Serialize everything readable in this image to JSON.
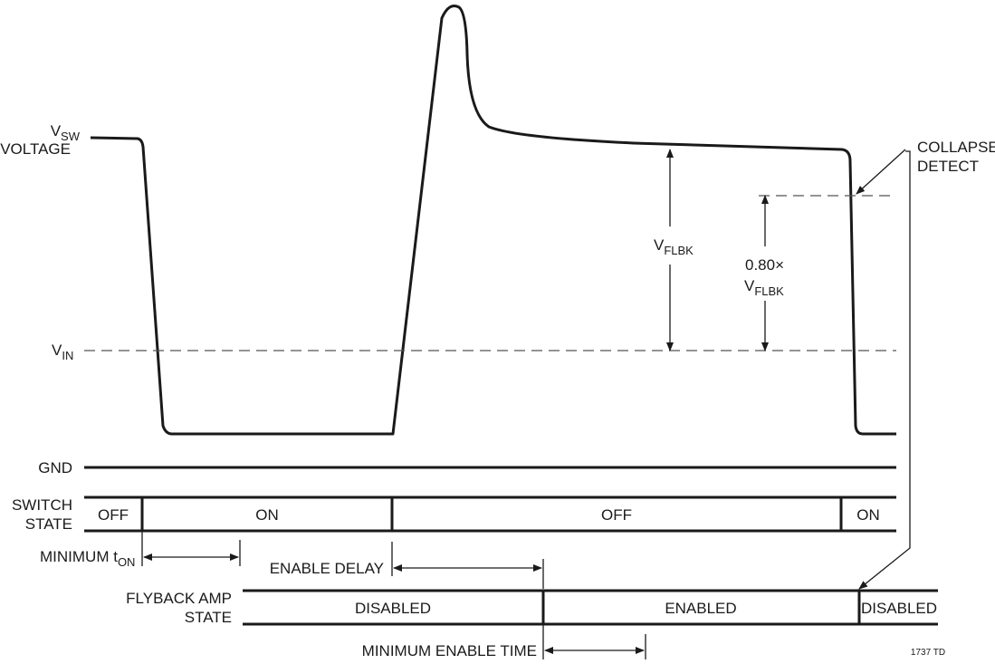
{
  "signal": {
    "vsw_main": "V",
    "vsw_sub": "SW",
    "vsw_voltage": "VOLTAGE",
    "vin_main": "V",
    "vin_sub": "IN",
    "gnd": "GND"
  },
  "annotations": {
    "vflbk_main": "V",
    "vflbk_sub": "FLBK",
    "factor": "0.80×",
    "factor_vflbk_main": "V",
    "factor_vflbk_sub": "FLBK",
    "collapse_line1": "COLLAPSE",
    "collapse_line2": "DETECT"
  },
  "switch_state": {
    "label_line1": "SWITCH",
    "label_line2": "STATE",
    "segments": [
      "OFF",
      "ON",
      "OFF",
      "ON"
    ]
  },
  "timing": {
    "min_ton_main": "MINIMUM t",
    "min_ton_sub": "ON",
    "enable_delay": "ENABLE DELAY",
    "min_enable_time": "MINIMUM ENABLE TIME"
  },
  "flyback_amp_state": {
    "label_line1": "FLYBACK AMP",
    "label_line2": "STATE",
    "segments": [
      "DISABLED",
      "ENABLED",
      "DISABLED"
    ]
  },
  "figure_code": "1737 TD"
}
